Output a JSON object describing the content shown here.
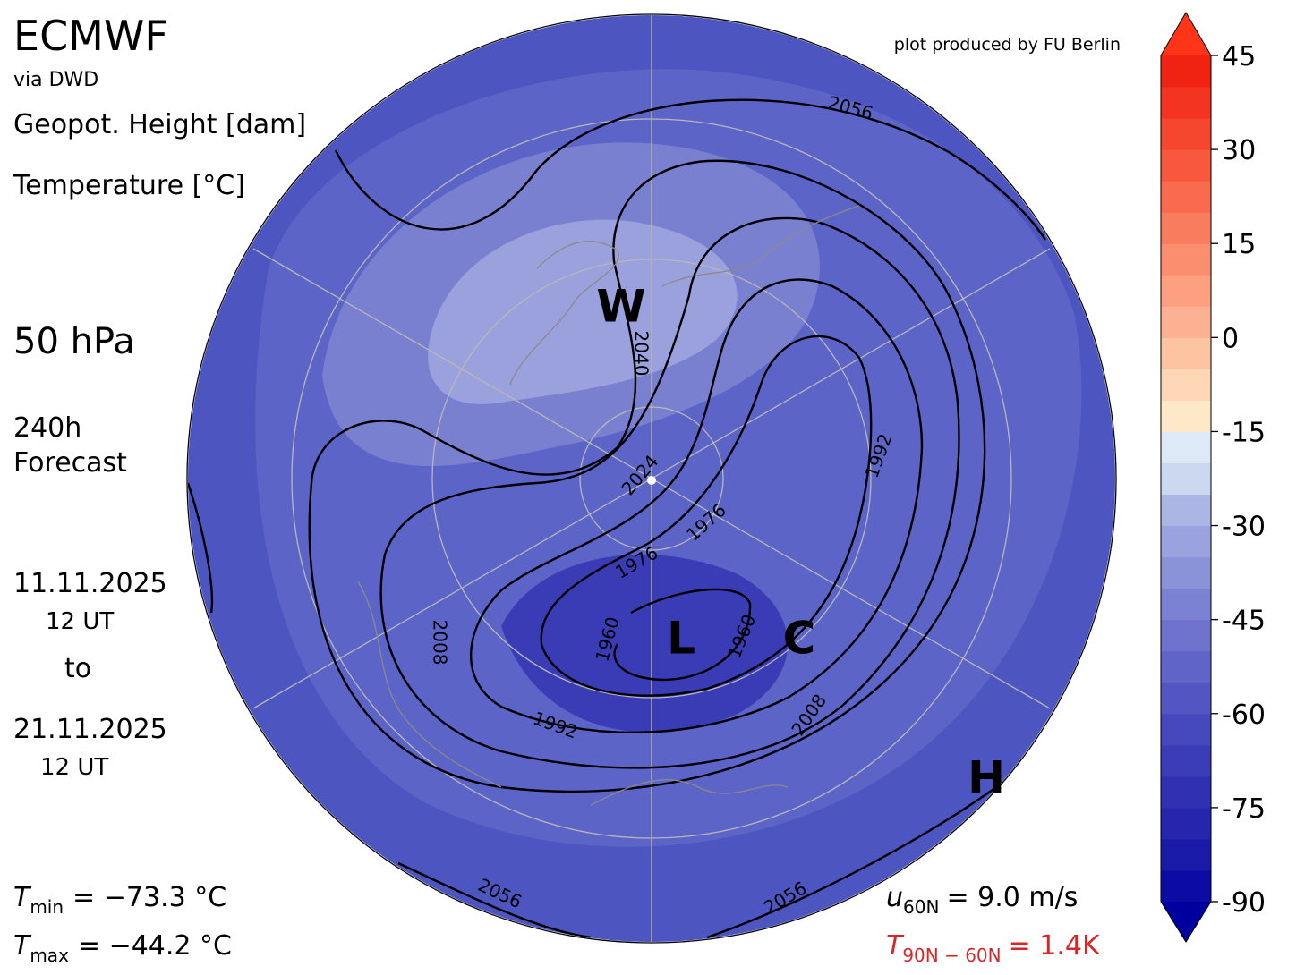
{
  "header": {
    "title": "ECMWF",
    "source": "via DWD",
    "variable_1": "Geopot. Height [dam]",
    "variable_2": "Temperature [°C]",
    "level": "50 hPa",
    "forecast_hours": "240h",
    "forecast_label": "Forecast",
    "start_date": "11.11.2025",
    "start_time": "12 UT",
    "to": "to",
    "end_date": "21.11.2025",
    "end_time": "12 UT"
  },
  "credit": "plot produced by FU Berlin",
  "stats": {
    "t_min": {
      "symbol": "T",
      "subscript": "min",
      "text": "= −73.3 °C"
    },
    "t_max": {
      "symbol": "T",
      "subscript": "max",
      "text": "= −44.2 °C"
    },
    "u_60n": {
      "symbol": "u",
      "subscript": "60N",
      "text": "= 9.0 m/s"
    },
    "t_diff": {
      "symbol": "T",
      "subscript": "90N − 60N",
      "text": "= 1.4K"
    }
  },
  "markers": [
    "W",
    "L",
    "C",
    "H"
  ],
  "contour_labels": [
    "2056",
    "2040",
    "2024",
    "1976",
    "1976",
    "1992",
    "1960",
    "1960",
    "2008",
    "1992",
    "2008",
    "2056",
    "2056"
  ],
  "colorbar": {
    "levels": [
      -90,
      -85,
      -80,
      -75,
      -70,
      -65,
      -60,
      -55,
      -50,
      -45,
      -40,
      -35,
      -30,
      -25,
      -20,
      -15,
      -10,
      -5,
      0,
      5,
      10,
      15,
      20,
      25,
      30,
      35,
      40,
      45
    ],
    "colors": [
      "#0c0ca4",
      "#1a1aa8",
      "#2525ad",
      "#2f30b2",
      "#3a3cb8",
      "#4648bd",
      "#5356c2",
      "#6064c8",
      "#6e72cd",
      "#7c82d3",
      "#8a92d8",
      "#9aa3de",
      "#abb6e4",
      "#cbd8f0",
      "#dde9f7",
      "#fde9c8",
      "#fdd6b6",
      "#fdc4a2",
      "#fcb292",
      "#fca080",
      "#fb8e6e",
      "#fa7c5e",
      "#f96a4e",
      "#f7583e",
      "#f5462e",
      "#f33420",
      "#f02212"
    ],
    "under_color": "#00009e",
    "over_color": "#ff3418",
    "ticks": [
      -90,
      -75,
      -60,
      -45,
      -30,
      -15,
      0,
      15,
      30,
      45
    ]
  }
}
